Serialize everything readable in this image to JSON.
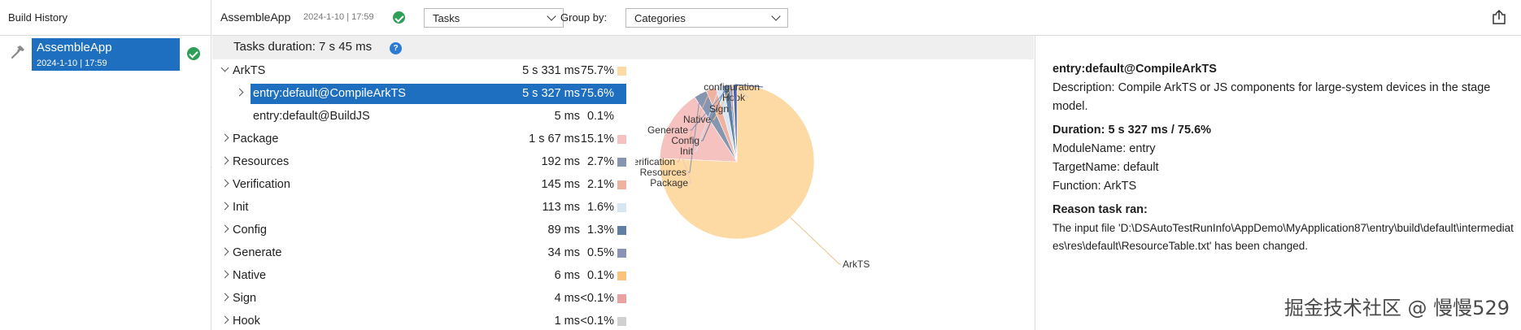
{
  "build_history": {
    "header": "Build History",
    "items": [
      {
        "name": "AssembleApp",
        "date": "2024-1-10 | 17:59"
      }
    ]
  },
  "toolbar": {
    "title": "AssembleApp",
    "date": "2024-1-10 | 17:59",
    "view_select": "Tasks",
    "group_by_label": "Group by:",
    "group_by_select": "Categories"
  },
  "tasks": {
    "duration_label": "Tasks duration: 7 s 45 ms",
    "help_icon": "?",
    "rows": [
      {
        "name": "ArkTS",
        "duration": "5 s 331 ms",
        "percent": "75.7%",
        "color": "#fdd9a3"
      },
      {
        "name": "entry:default@CompileArkTS",
        "duration": "5 s 327 ms",
        "percent": "75.6%",
        "color": "#fdd9a3"
      },
      {
        "name": "entry:default@BuildJS",
        "duration": "5 ms",
        "percent": "0.1%",
        "color": ""
      },
      {
        "name": "Package",
        "duration": "1 s 67 ms",
        "percent": "15.1%",
        "color": "#f5c2c0"
      },
      {
        "name": "Resources",
        "duration": "192 ms",
        "percent": "2.7%",
        "color": "#8696b1"
      },
      {
        "name": "Verification",
        "duration": "145 ms",
        "percent": "2.1%",
        "color": "#f0b29e"
      },
      {
        "name": "Init",
        "duration": "113 ms",
        "percent": "1.6%",
        "color": "#d6e6f3"
      },
      {
        "name": "Config",
        "duration": "89 ms",
        "percent": "1.3%",
        "color": "#5f7fa3"
      },
      {
        "name": "Generate",
        "duration": "34 ms",
        "percent": "0.5%",
        "color": "#8a93b6"
      },
      {
        "name": "Native",
        "duration": "6 ms",
        "percent": "0.1%",
        "color": "#fac27a"
      },
      {
        "name": "Sign",
        "duration": "4 ms",
        "percent": "<0.1%",
        "color": "#eba1a0"
      },
      {
        "name": "Hook",
        "duration": "1 ms",
        "percent": "<0.1%",
        "color": "#d0d0d0"
      }
    ]
  },
  "chart_data": {
    "type": "pie",
    "categories": [
      "ArkTS",
      "Package",
      "Resources",
      "Verification",
      "Init",
      "Config",
      "Generate",
      "Native",
      "Sign",
      "Hook",
      "configuration"
    ],
    "values": [
      75.7,
      15.1,
      2.7,
      2.1,
      1.6,
      1.3,
      0.5,
      0.1,
      0.05,
      0.05,
      0.8
    ],
    "colors": [
      "#fdd9a3",
      "#f5c2c0",
      "#8696b1",
      "#f0b29e",
      "#d6e6f3",
      "#5f7fa3",
      "#8a93b6",
      "#fac27a",
      "#eba1a0",
      "#d0d0d0",
      "#4a64a8"
    ]
  },
  "details": {
    "task_name": "entry:default@CompileArkTS",
    "description": "Description: Compile ArkTS or JS components for large-system devices in the stage model.",
    "duration": "Duration: 5 s 327 ms / 75.6%",
    "module": "ModuleName: entry",
    "target": "TargetName: default",
    "function": "Function: ArkTS",
    "reason_title": "Reason task ran:",
    "reason_text": "The input file 'D:\\DSAutoTestRunInfo\\AppDemo\\MyApplication87\\entry\\build\\default\\intermediates\\res\\default\\ResourceTable.txt' has been changed."
  },
  "watermark": "掘金技术社区 @ 慢慢529"
}
